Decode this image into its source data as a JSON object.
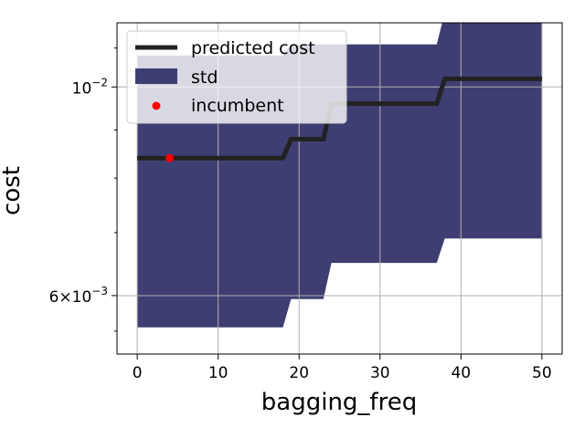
{
  "chart_data": {
    "type": "line",
    "xlabel": "bagging_freq",
    "ylabel": "cost",
    "xlim": [
      -2.5,
      52.5
    ],
    "ylim": [
      0.0052,
      0.0117
    ],
    "yscale": "log",
    "grid": true,
    "x_ticks": [
      0,
      10,
      20,
      30,
      40,
      50
    ],
    "x_tick_labels": [
      "0",
      "10",
      "20",
      "30",
      "40",
      "50"
    ],
    "y_major_ticks": [
      0.01,
      0.006
    ],
    "y_major_tick_labels": [
      {
        "base": "10",
        "exp": "−2"
      },
      {
        "base": "6×10",
        "exp": "−3"
      }
    ],
    "y_minor_ticks": [
      0.0055,
      0.007,
      0.008,
      0.009,
      0.011
    ],
    "legend_position": "upper-left",
    "colors": {
      "predicted_cost": "#222222",
      "std": "#3f3e72",
      "incumbent": "#ff0000",
      "grid": "#b0b0b0"
    },
    "series": [
      {
        "name": "predicted cost",
        "kind": "line",
        "points": [
          [
            0,
            0.0084
          ],
          [
            18,
            0.0084
          ],
          [
            19,
            0.0088
          ],
          [
            23,
            0.0088
          ],
          [
            24,
            0.0096
          ],
          [
            37,
            0.0096
          ],
          [
            38,
            0.0102
          ],
          [
            50,
            0.0102
          ]
        ]
      },
      {
        "name": "std",
        "kind": "band",
        "points": [
          {
            "x": 0,
            "lower": 0.00555,
            "upper": 0.0108
          },
          {
            "x": 18,
            "lower": 0.00555,
            "upper": 0.0108
          },
          {
            "x": 19,
            "lower": 0.00595,
            "upper": 0.0111
          },
          {
            "x": 23,
            "lower": 0.00595,
            "upper": 0.0111
          },
          {
            "x": 24,
            "lower": 0.0065,
            "upper": 0.0111
          },
          {
            "x": 37,
            "lower": 0.0065,
            "upper": 0.0111
          },
          {
            "x": 38,
            "lower": 0.0069,
            "upper": 0.012
          },
          {
            "x": 50,
            "lower": 0.0069,
            "upper": 0.012
          }
        ]
      },
      {
        "name": "incumbent",
        "kind": "scatter",
        "points": [
          [
            4,
            0.0084
          ]
        ]
      }
    ]
  }
}
